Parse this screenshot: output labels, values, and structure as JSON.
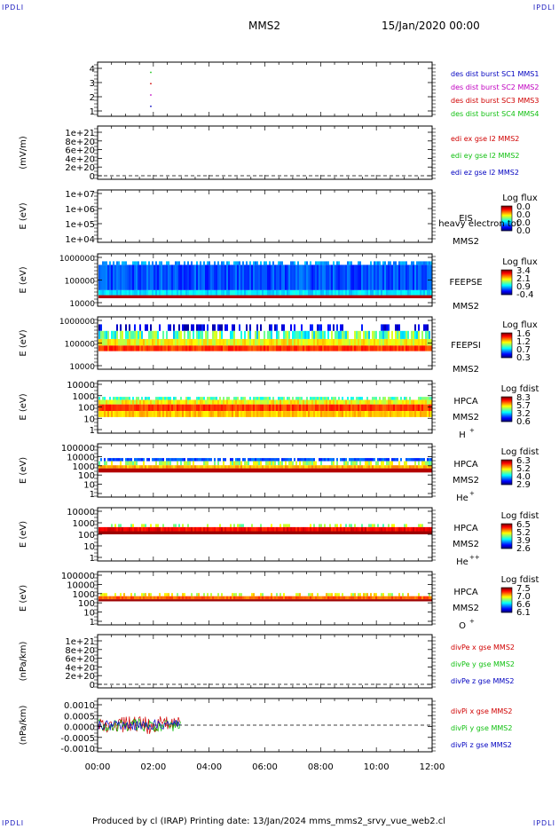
{
  "corner_tl": "IPDLI",
  "corner_tr": "IPDLI",
  "corner_bl": "IPDLI",
  "corner_br": "IPDLI",
  "header": {
    "mission": "MMS2",
    "datetime": "15/Jan/2020 00:00"
  },
  "footer": {
    "text": "Produced by cl (IRAP)   Printing date: 13/Jan/2024   mms_mms2_srvy_vue_web2.cl"
  },
  "time_axis": {
    "labels": [
      "00:00",
      "02:00",
      "04:00",
      "06:00",
      "08:00",
      "10:00",
      "12:00"
    ]
  },
  "colors": {
    "red": "#d00000",
    "green": "#10c010",
    "blue": "#0000c0",
    "magenta": "#c000c0"
  },
  "chart_data": [
    {
      "type": "scatter",
      "ylim": [
        0.5,
        4.5
      ],
      "yticks": [
        "4",
        "3",
        "2",
        "1"
      ],
      "legend": [
        {
          "name": "des dist burst SC1 MMS1",
          "color": "#0000c0"
        },
        {
          "name": "des dist burst SC2 MMS2",
          "color": "#c000c0"
        },
        {
          "name": "des dist burst SC3 MMS3",
          "color": "#d00000"
        },
        {
          "name": "des dist burst SC4 MMS4",
          "color": "#10c010"
        }
      ],
      "points": [
        {
          "x": "01:55",
          "y": 4
        },
        {
          "x": "01:55",
          "y": 3
        },
        {
          "x": "01:55",
          "y": 2
        },
        {
          "x": "01:55",
          "y": 1
        }
      ]
    },
    {
      "type": "line",
      "ylabel": "(mV/m)",
      "yticks": [
        "1e+21",
        "8e+20",
        "6e+20",
        "4e+20",
        "2e+20",
        "0"
      ],
      "series": [
        {
          "name": "edi ex gse l2 MMS2",
          "color": "#d00000"
        },
        {
          "name": "edi ey gse l2 MMS2",
          "color": "#10c010"
        },
        {
          "name": "edi ez gse l2 MMS2",
          "color": "#0000c0"
        }
      ]
    },
    {
      "type": "heatmap",
      "ylabel": "E (eV)",
      "yticks": [
        "1e+07",
        "1e+06",
        "1e+05",
        "1e+04"
      ],
      "instrument": "EIS",
      "sc": "MMS2",
      "overlay": "heavy electron tot",
      "colorbar": {
        "title": "Log flux",
        "ticks": [
          "0.0",
          "0.0",
          "0.0",
          "0.0"
        ]
      }
    },
    {
      "type": "heatmap",
      "ylabel": "E (eV)",
      "yticks": [
        "1000000",
        "100000",
        "10000"
      ],
      "instrument": "FEEPSE",
      "sc": "MMS2",
      "colorbar": {
        "title": "Log flux",
        "ticks": [
          "3.4",
          "2.1",
          "0.9",
          "-0.4"
        ]
      }
    },
    {
      "type": "heatmap",
      "ylabel": "E (eV)",
      "yticks": [
        "1000000",
        "100000",
        "10000"
      ],
      "instrument": "FEEPSI",
      "sc": "MMS2",
      "colorbar": {
        "title": "Log flux",
        "ticks": [
          "1.6",
          "1.2",
          "0.7",
          "0.3"
        ]
      }
    },
    {
      "type": "heatmap",
      "ylabel": "E (eV)",
      "yticks": [
        "10000",
        "1000",
        "100",
        "10",
        "1"
      ],
      "instrument": "HPCA",
      "sc": "MMS2",
      "species": "H",
      "charge": "+",
      "colorbar": {
        "title": "Log fdist",
        "ticks": [
          "8.3",
          "5.7",
          "3.2",
          "0.6"
        ]
      }
    },
    {
      "type": "heatmap",
      "ylabel": "E (eV)",
      "yticks": [
        "100000",
        "10000",
        "1000",
        "100",
        "10",
        "1"
      ],
      "instrument": "HPCA",
      "sc": "MMS2",
      "species": "He",
      "charge": "+",
      "colorbar": {
        "title": "Log fdist",
        "ticks": [
          "6.3",
          "5.2",
          "4.0",
          "2.9"
        ]
      }
    },
    {
      "type": "heatmap",
      "ylabel": "E (eV)",
      "yticks": [
        "10000",
        "1000",
        "100",
        "10",
        "1"
      ],
      "instrument": "HPCA",
      "sc": "MMS2",
      "species": "He",
      "charge": "++",
      "colorbar": {
        "title": "Log fdist",
        "ticks": [
          "6.5",
          "5.2",
          "3.9",
          "2.6"
        ]
      }
    },
    {
      "type": "heatmap",
      "ylabel": "E (eV)",
      "yticks": [
        "100000",
        "10000",
        "1000",
        "100",
        "10",
        "1"
      ],
      "instrument": "HPCA",
      "sc": "MMS2",
      "species": "O",
      "charge": "+",
      "colorbar": {
        "title": "Log fdist",
        "ticks": [
          "7.5",
          "7.0",
          "6.6",
          "6.1"
        ]
      }
    },
    {
      "type": "line",
      "ylabel": "(nPa/km)",
      "yticks": [
        "1e+21",
        "8e+20",
        "6e+20",
        "4e+20",
        "2e+20",
        "0"
      ],
      "series": [
        {
          "name": "divPe x gse MMS2",
          "color": "#d00000"
        },
        {
          "name": "divPe y gse MMS2",
          "color": "#10c010"
        },
        {
          "name": "divPe z gse MMS2",
          "color": "#0000c0"
        }
      ]
    },
    {
      "type": "line",
      "ylabel": "(nPa/km)",
      "yticks": [
        "0.0010",
        "0.0005",
        "0.0000",
        "-0.0005",
        "-0.0010"
      ],
      "ylim": [
        -0.0013,
        0.0013
      ],
      "x_end": "03:00",
      "series": [
        {
          "name": "divPi x gse MMS2",
          "color": "#d00000"
        },
        {
          "name": "divPi y gse MMS2",
          "color": "#10c010"
        },
        {
          "name": "divPi z gse MMS2",
          "color": "#0000c0"
        }
      ]
    }
  ]
}
